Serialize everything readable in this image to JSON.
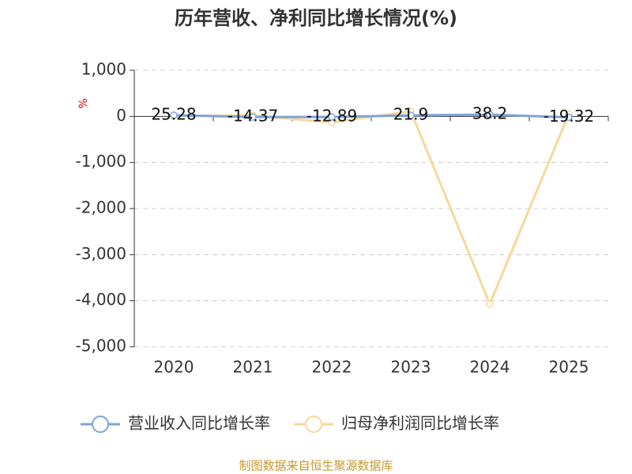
{
  "chart_data": {
    "type": "line",
    "title": "历年营收、净利同比增长情况(%)",
    "y_label": "%",
    "categories": [
      "2020",
      "2021",
      "2022",
      "2023",
      "2024",
      "2025"
    ],
    "series": [
      {
        "name": "营业收入同比增长率",
        "color": "#7fa3d8",
        "values": [
          25.28,
          -14.37,
          -12.89,
          21.9,
          38.2,
          -19.32
        ],
        "show_labels": true
      },
      {
        "name": "归母净利润同比增长率",
        "color": "#f8d898",
        "values": [
          10,
          20,
          -130,
          110,
          -4070,
          50
        ],
        "show_labels": false
      }
    ],
    "ylim": [
      -5000,
      1000
    ],
    "yticks": [
      {
        "value": 1000,
        "label": "1,000"
      },
      0,
      {
        "value": -1000,
        "label": "-1,000"
      },
      {
        "value": -2000,
        "label": "-2,000"
      },
      {
        "value": -3000,
        "label": "-3,000"
      },
      {
        "value": -4000,
        "label": "-4,000"
      },
      {
        "value": -5000,
        "label": "-5,000"
      }
    ],
    "grid": true,
    "source": "制图数据来自恒生聚源数据库"
  }
}
